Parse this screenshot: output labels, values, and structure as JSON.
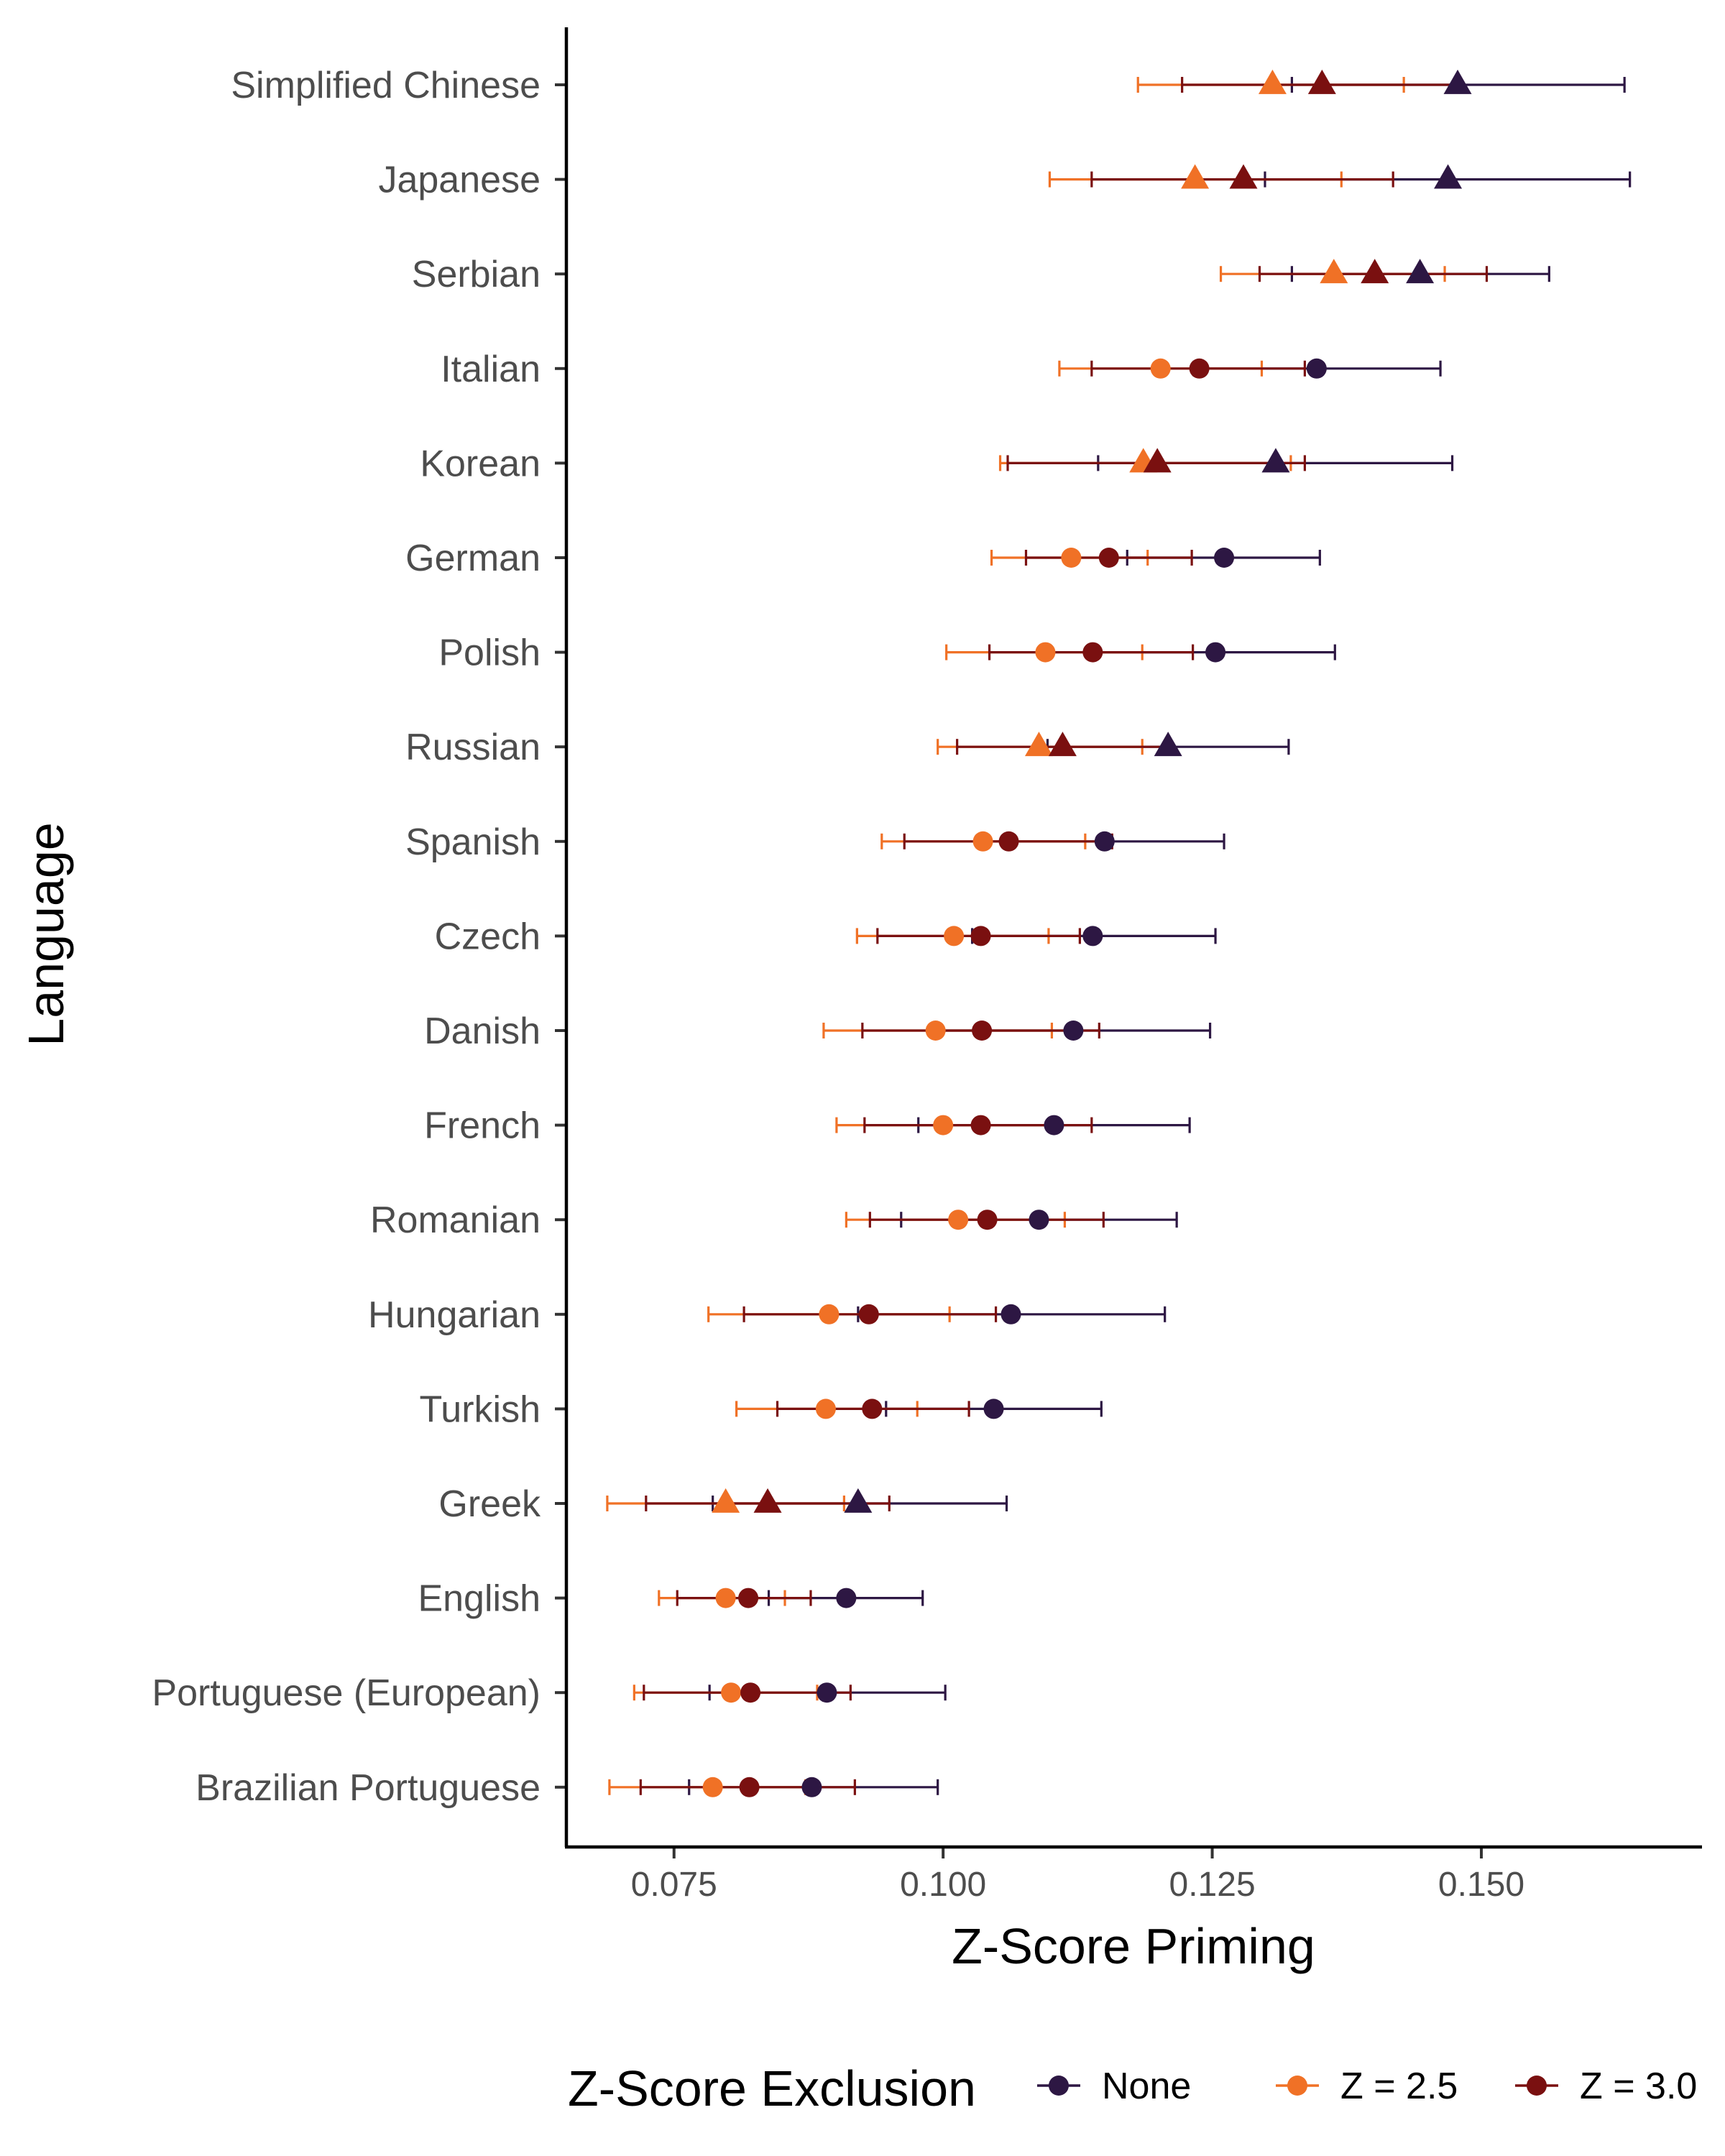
{
  "chart_data": {
    "type": "scatter",
    "subtype": "dot-and-whisker",
    "xlabel": "Z-Score Priming",
    "ylabel": "Language",
    "xlim": [
      0.065,
      0.1705
    ],
    "xticks": [
      0.075,
      0.1,
      0.125,
      0.15
    ],
    "xtick_labels": [
      "0.075",
      "0.100",
      "0.125",
      "0.150"
    ],
    "grid": false,
    "legend": {
      "title": "Z-Score Exclusion",
      "position": "bottom",
      "entries": [
        {
          "label": "None",
          "color": "#2d1743"
        },
        {
          "label": "Z = 2.5",
          "color": "#f07126"
        },
        {
          "label": "Z = 3.0",
          "color": "#7a1010"
        }
      ]
    },
    "categories": [
      "Simplified Chinese",
      "Japanese",
      "Serbian",
      "Italian",
      "Korean",
      "German",
      "Polish",
      "Russian",
      "Spanish",
      "Czech",
      "Danish",
      "French",
      "Romanian",
      "Hungarian",
      "Turkish",
      "Greek",
      "English",
      "Portuguese (European)",
      "Brazilian Portuguese"
    ],
    "shapes": [
      "triangle",
      "triangle",
      "triangle",
      "circle",
      "triangle",
      "circle",
      "circle",
      "triangle",
      "circle",
      "circle",
      "circle",
      "circle",
      "circle",
      "circle",
      "circle",
      "triangle",
      "circle",
      "circle",
      "circle"
    ],
    "series": [
      {
        "name": "None",
        "color": "#2d1743",
        "values": [
          0.1478,
          0.1469,
          0.1443,
          0.1347,
          0.1309,
          0.1261,
          0.1253,
          0.1209,
          0.115,
          0.1139,
          0.1121,
          0.1103,
          0.1089,
          0.1063,
          0.1047,
          0.0921,
          0.091,
          0.0892,
          0.0878
        ],
        "lower": [
          0.1324,
          0.1299,
          0.1324,
          0.1233,
          0.1144,
          0.1171,
          0.1141,
          0.1097,
          0.1038,
          0.1027,
          0.0991,
          0.0977,
          0.0961,
          0.0921,
          0.0947,
          0.0786,
          0.0838,
          0.0783,
          0.0764
        ],
        "upper": [
          0.1633,
          0.1638,
          0.1563,
          0.1462,
          0.1473,
          0.135,
          0.1364,
          0.1321,
          0.1261,
          0.1253,
          0.1248,
          0.1229,
          0.1217,
          0.1206,
          0.1147,
          0.1059,
          0.0981,
          0.1002,
          0.0995
        ]
      },
      {
        "name": "Z = 2.5",
        "color": "#f07126",
        "values": [
          0.1306,
          0.1234,
          0.1363,
          0.1202,
          0.1186,
          0.1119,
          0.1095,
          0.1089,
          0.1037,
          0.101,
          0.0993,
          0.1,
          0.1014,
          0.0894,
          0.0891,
          0.0798,
          0.0798,
          0.0803,
          0.0786
        ],
        "lower": [
          0.1181,
          0.1099,
          0.1258,
          0.1108,
          0.1053,
          0.1045,
          0.1003,
          0.0995,
          0.0943,
          0.092,
          0.0889,
          0.0901,
          0.091,
          0.0782,
          0.0808,
          0.0688,
          0.0736,
          0.0713,
          0.069
        ],
        "upper": [
          0.1428,
          0.137,
          0.1466,
          0.1296,
          0.1323,
          0.119,
          0.1185,
          0.1185,
          0.1132,
          0.1098,
          0.1101,
          0.1099,
          0.1113,
          0.1006,
          0.0976,
          0.0908,
          0.0853,
          0.0883,
          0.0872
        ]
      },
      {
        "name": "Z = 3.0",
        "color": "#7a1010",
        "values": [
          0.1352,
          0.1279,
          0.1401,
          0.1238,
          0.1199,
          0.1154,
          0.1139,
          0.1111,
          0.1061,
          0.1035,
          0.1036,
          0.1035,
          0.1041,
          0.0931,
          0.0934,
          0.0837,
          0.0819,
          0.0821,
          0.082
        ],
        "lower": [
          0.1222,
          0.1138,
          0.1294,
          0.1138,
          0.106,
          0.1077,
          0.1043,
          0.1013,
          0.0964,
          0.0939,
          0.0925,
          0.0927,
          0.0932,
          0.0815,
          0.0846,
          0.0724,
          0.0753,
          0.0722,
          0.0719
        ],
        "upper": [
          0.1479,
          0.1418,
          0.1505,
          0.1336,
          0.1336,
          0.1231,
          0.1232,
          0.1209,
          0.1157,
          0.1127,
          0.1145,
          0.1138,
          0.1149,
          0.1049,
          0.1024,
          0.095,
          0.0877,
          0.0914,
          0.0918
        ]
      }
    ]
  }
}
